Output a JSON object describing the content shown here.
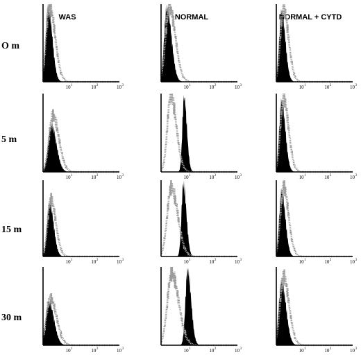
{
  "chart_data": {
    "type": "area",
    "columns": [
      "WAS",
      "NORMAL",
      "NORMAL + CYTD"
    ],
    "rows": [
      "O m",
      "5 m",
      "15 m",
      "30 m"
    ],
    "x_scale": "log",
    "x_ticks": [
      {
        "base": "10",
        "exp": "1"
      },
      {
        "base": "10",
        "exp": "2"
      },
      {
        "base": "10",
        "exp": "3"
      }
    ],
    "xlim": [
      1,
      1000
    ],
    "panels": [
      {
        "row": 0,
        "col": 0,
        "filled": {
          "peak": 1.6,
          "width": 0.16,
          "h": 0.95
        },
        "outline": {
          "peak": 1.8,
          "width": 0.22,
          "h": 0.98
        }
      },
      {
        "row": 0,
        "col": 1,
        "filled": {
          "peak": 1.7,
          "width": 0.18,
          "h": 0.95
        },
        "outline": {
          "peak": 2.1,
          "width": 0.24,
          "h": 0.97
        }
      },
      {
        "row": 0,
        "col": 2,
        "filled": {
          "peak": 1.6,
          "width": 0.15,
          "h": 0.9
        },
        "outline": {
          "peak": 1.9,
          "width": 0.2,
          "h": 0.95
        }
      },
      {
        "row": 1,
        "col": 0,
        "filled": {
          "peak": 2.1,
          "width": 0.2,
          "h": 0.6
        },
        "outline": {
          "peak": 2.4,
          "width": 0.24,
          "h": 0.72
        }
      },
      {
        "row": 1,
        "col": 1,
        "filled": {
          "peak": 8.0,
          "width": 0.11,
          "h": 0.95
        },
        "outline": {
          "peak": 2.4,
          "width": 0.22,
          "h": 0.98
        }
      },
      {
        "row": 1,
        "col": 2,
        "filled": {
          "peak": 1.6,
          "width": 0.15,
          "h": 0.9
        },
        "outline": {
          "peak": 1.9,
          "width": 0.2,
          "h": 0.95
        }
      },
      {
        "row": 2,
        "col": 0,
        "filled": {
          "peak": 1.8,
          "width": 0.16,
          "h": 0.7
        },
        "outline": {
          "peak": 2.0,
          "width": 0.2,
          "h": 0.75
        }
      },
      {
        "row": 2,
        "col": 1,
        "filled": {
          "peak": 7.5,
          "width": 0.12,
          "h": 0.95
        },
        "outline": {
          "peak": 2.5,
          "width": 0.26,
          "h": 0.9
        }
      },
      {
        "row": 2,
        "col": 2,
        "filled": {
          "peak": 1.6,
          "width": 0.15,
          "h": 0.85
        },
        "outline": {
          "peak": 1.9,
          "width": 0.2,
          "h": 0.92
        }
      },
      {
        "row": 3,
        "col": 0,
        "filled": {
          "peak": 1.7,
          "width": 0.2,
          "h": 0.55
        },
        "outline": {
          "peak": 1.9,
          "width": 0.25,
          "h": 0.6
        }
      },
      {
        "row": 3,
        "col": 1,
        "filled": {
          "peak": 11.0,
          "width": 0.14,
          "h": 0.95
        },
        "outline": {
          "peak": 2.6,
          "width": 0.28,
          "h": 0.92
        }
      },
      {
        "row": 3,
        "col": 2,
        "filled": {
          "peak": 1.6,
          "width": 0.18,
          "h": 0.8
        },
        "outline": {
          "peak": 1.9,
          "width": 0.22,
          "h": 0.88
        }
      }
    ]
  }
}
